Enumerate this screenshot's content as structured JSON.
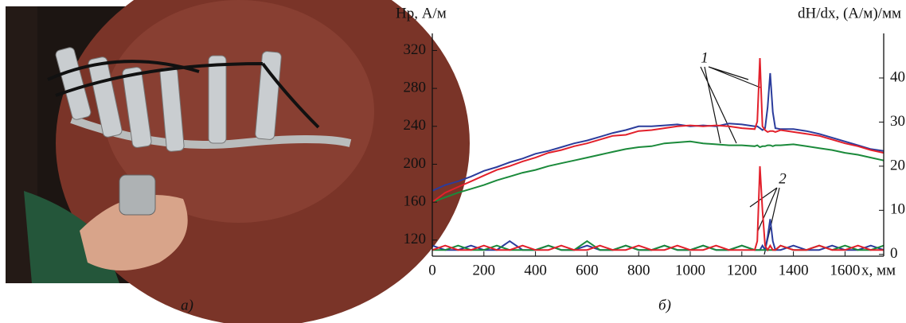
{
  "photo": {
    "caption": "а)"
  },
  "chart_data": {
    "type": "line",
    "caption": "б)",
    "y_label": "Hр, А/м",
    "y2_label": "dH/dx, (А/м)/мм",
    "x_label": "x, мм",
    "annotations": [
      "1",
      "2"
    ],
    "xlim": [
      0,
      1750
    ],
    "xticks": [
      0,
      200,
      400,
      600,
      800,
      1000,
      1200,
      1400,
      1600
    ],
    "ylim": [
      103,
      338
    ],
    "yticks": [
      120,
      160,
      200,
      240,
      280,
      320
    ],
    "y2lim": [
      -0.4,
      50.1
    ],
    "y2ticks": [
      0,
      10,
      20,
      30,
      40
    ],
    "x": [
      0,
      50,
      100,
      150,
      200,
      250,
      300,
      350,
      400,
      450,
      500,
      550,
      600,
      650,
      700,
      750,
      800,
      850,
      900,
      950,
      1000,
      1050,
      1100,
      1150,
      1200,
      1250,
      1260,
      1270,
      1280,
      1290,
      1300,
      1310,
      1320,
      1330,
      1350,
      1400,
      1450,
      1500,
      1550,
      1600,
      1650,
      1700,
      1750
    ],
    "series": [
      {
        "color": "#2b3c9c",
        "values": [
          172,
          178,
          182,
          187,
          193,
          197,
          202,
          206,
          211,
          214,
          218,
          222,
          225,
          229,
          233,
          236,
          240,
          240,
          241,
          242,
          240,
          241,
          240,
          243,
          242,
          240,
          240,
          238,
          236,
          238,
          260,
          296,
          255,
          238,
          237,
          237,
          235,
          232,
          228,
          224,
          220,
          216,
          214
        ]
      },
      {
        "color": "#1b8a3b",
        "values": [
          160,
          165,
          170,
          174,
          178,
          183,
          187,
          191,
          194,
          198,
          201,
          204,
          207,
          210,
          213,
          216,
          218,
          219,
          222,
          223,
          224,
          222,
          221,
          220,
          220,
          219,
          220,
          218,
          219,
          219,
          220,
          220,
          219,
          220,
          220,
          221,
          219,
          217,
          215,
          212,
          210,
          207,
          204
        ]
      },
      {
        "color": "#e2202b",
        "values": [
          160,
          170,
          176,
          182,
          188,
          194,
          198,
          203,
          207,
          212,
          215,
          219,
          222,
          226,
          230,
          231,
          235,
          236,
          238,
          240,
          241,
          240,
          241,
          240,
          238,
          237,
          245,
          312,
          240,
          236,
          234,
          235,
          235,
          234,
          236,
          234,
          232,
          230,
          226,
          222,
          219,
          215,
          212
        ]
      },
      {
        "color": "#2b3c9c",
        "axis": "y2",
        "values": [
          2,
          1,
          1,
          2,
          1,
          1,
          3,
          1,
          1,
          2,
          1,
          1,
          2,
          1,
          1,
          2,
          1,
          1,
          2,
          1,
          1,
          2,
          1,
          1,
          2,
          1,
          1,
          1,
          2,
          1,
          4,
          8,
          3,
          1,
          1,
          2,
          1,
          1,
          2,
          1,
          1,
          2,
          1
        ]
      },
      {
        "color": "#1b8a3b",
        "axis": "y2",
        "values": [
          1,
          1,
          2,
          1,
          1,
          2,
          1,
          1,
          1,
          2,
          1,
          1,
          3,
          1,
          1,
          2,
          1,
          1,
          2,
          1,
          1,
          2,
          1,
          1,
          2,
          1,
          1,
          1,
          1,
          1,
          1,
          1,
          1,
          1,
          2,
          1,
          1,
          2,
          1,
          2,
          1,
          1,
          2
        ]
      },
      {
        "color": "#e2202b",
        "axis": "y2",
        "values": [
          1,
          2,
          1,
          1,
          2,
          1,
          1,
          2,
          1,
          1,
          2,
          1,
          1,
          2,
          1,
          1,
          2,
          1,
          1,
          2,
          1,
          1,
          2,
          1,
          1,
          1,
          3,
          20,
          10,
          2,
          1,
          2,
          1,
          1,
          2,
          1,
          1,
          2,
          1,
          1,
          2,
          1,
          1
        ]
      }
    ]
  }
}
